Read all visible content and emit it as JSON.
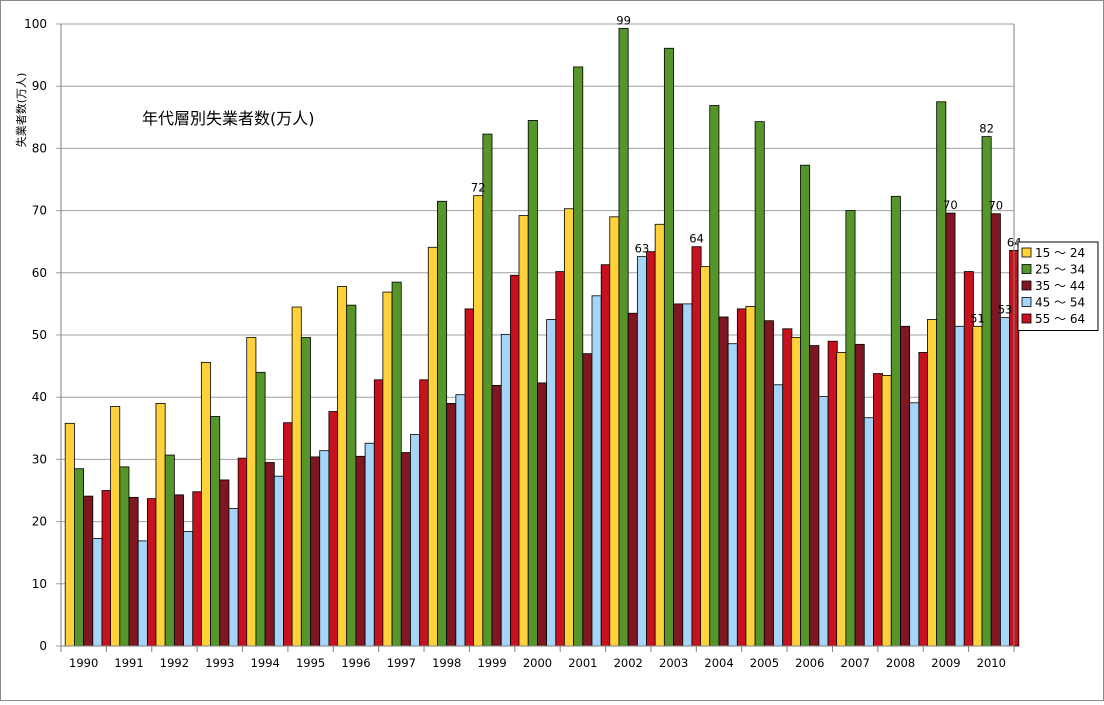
{
  "chart_data": {
    "type": "bar",
    "title": "年代層別失業者数(万人)",
    "ylabel": "失業者数(万人)",
    "xlabel": "",
    "ylim": [
      0,
      100
    ],
    "yticks": [
      0,
      10,
      20,
      30,
      40,
      50,
      60,
      70,
      80,
      90,
      100
    ],
    "grid": true,
    "legend_position": "right",
    "categories": [
      "1990",
      "1991",
      "1992",
      "1993",
      "1994",
      "1995",
      "1996",
      "1997",
      "1998",
      "1999",
      "2000",
      "2001",
      "2002",
      "2003",
      "2004",
      "2005",
      "2006",
      "2007",
      "2008",
      "2009",
      "2010"
    ],
    "series": [
      {
        "name": "15 ～ 24",
        "color": "#ffd23c",
        "values": [
          35.8,
          38.5,
          39.0,
          45.6,
          49.6,
          54.5,
          57.8,
          56.9,
          64.1,
          72.4,
          69.2,
          70.3,
          69.0,
          67.8,
          61.0,
          54.6,
          49.6,
          47.2,
          43.5,
          52.5,
          51.4
        ]
      },
      {
        "name": "25 ～ 34",
        "color": "#55952a",
        "values": [
          28.5,
          28.8,
          30.7,
          36.9,
          44.0,
          49.6,
          54.8,
          58.5,
          71.5,
          82.3,
          84.5,
          93.1,
          99.3,
          96.1,
          86.9,
          84.3,
          77.3,
          70.0,
          72.3,
          87.5,
          81.9
        ]
      },
      {
        "name": "35 ～ 44",
        "color": "#7f1622",
        "values": [
          24.1,
          23.9,
          24.3,
          26.7,
          29.5,
          30.4,
          30.5,
          31.1,
          39.0,
          41.9,
          42.3,
          47.0,
          53.5,
          55.0,
          52.9,
          52.3,
          48.3,
          48.5,
          51.4,
          69.6,
          69.5
        ]
      },
      {
        "name": "45 ～ 54",
        "color": "#a6d5fa",
        "values": [
          17.3,
          16.9,
          18.4,
          22.1,
          27.3,
          31.4,
          32.6,
          34.0,
          40.4,
          50.1,
          52.5,
          56.3,
          62.6,
          55.0,
          48.6,
          42.0,
          40.1,
          36.7,
          39.1,
          51.4,
          52.8
        ]
      },
      {
        "name": "55 ～ 64",
        "color": "#c8111e",
        "values": [
          25.0,
          23.7,
          24.8,
          30.2,
          35.9,
          37.7,
          42.8,
          42.8,
          54.2,
          59.6,
          60.2,
          61.3,
          63.4,
          64.2,
          54.2,
          51.0,
          49.0,
          43.8,
          47.2,
          60.2,
          63.6
        ]
      }
    ],
    "data_labels": [
      {
        "category": "1999",
        "series": "15 ～ 24",
        "text": "72"
      },
      {
        "category": "2002",
        "series": "25 ～ 34",
        "text": "99"
      },
      {
        "category": "2002",
        "series": "45 ～ 54",
        "text": "63"
      },
      {
        "category": "2003",
        "series": "55 ～ 64",
        "text": "64"
      },
      {
        "category": "2009",
        "series": "35 ～ 44",
        "text": "70"
      },
      {
        "category": "2010",
        "series": "15 ～ 24",
        "text": "51"
      },
      {
        "category": "2010",
        "series": "25 ～ 34",
        "text": "82"
      },
      {
        "category": "2010",
        "series": "35 ～ 44",
        "text": "70"
      },
      {
        "category": "2010",
        "series": "45 ～ 54",
        "text": "53"
      },
      {
        "category": "2010",
        "series": "55 ～ 64",
        "text": "64"
      }
    ]
  }
}
